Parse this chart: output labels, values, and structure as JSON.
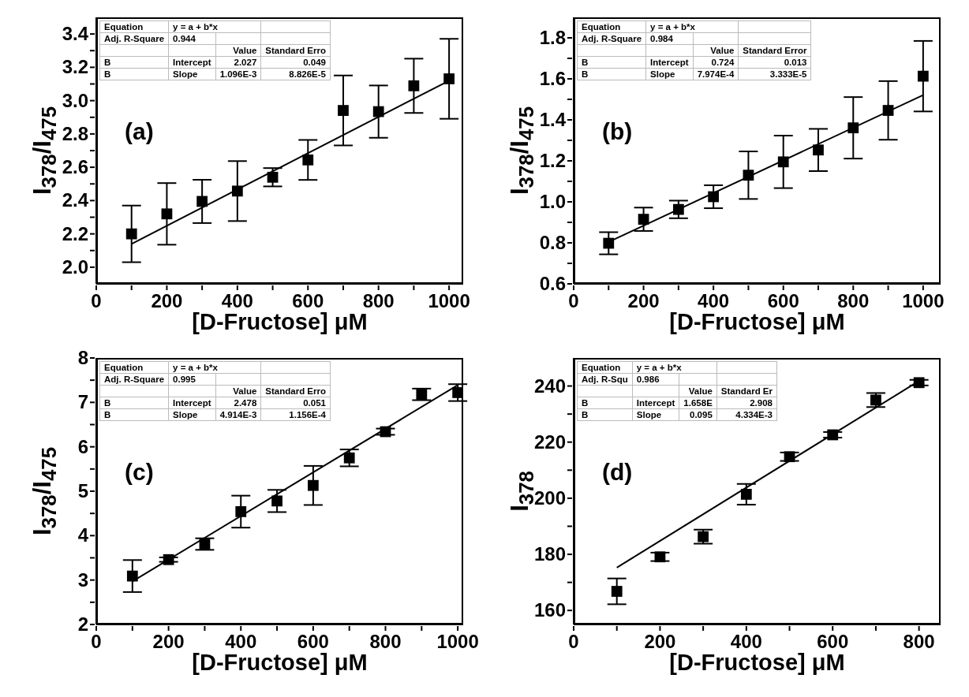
{
  "chart_data": [
    {
      "type": "scatter",
      "xlabel": "[D-Fructose] μM",
      "ylabel": "I$_{378}$/I$_{475}$",
      "annotations": [
        "(a)",
        "Equation",
        "y = a + b*x",
        "Adj. R-Square",
        "0.944",
        "Value",
        "Standard Erro",
        "B",
        "Intercept",
        "2.027",
        "0.049",
        "B",
        "Slope",
        "1.096E-3",
        "8.826E-5"
      ],
      "xlim": [
        0,
        1040
      ],
      "xticks": [
        0,
        {
          "value": 100,
          "label": null
        },
        200,
        {
          "value": 300,
          "label": null
        },
        400,
        {
          "value": 500,
          "label": null
        },
        600,
        {
          "value": 700,
          "label": null
        },
        800,
        {
          "value": 900,
          "label": null
        },
        1000
      ],
      "ylim": [
        1.9,
        3.5
      ],
      "yticks": [
        {
          "value": 2,
          "label": "2.0"
        },
        {
          "value": 2.1,
          "label": null
        },
        2.2,
        {
          "value": 2.3,
          "label": null
        },
        2.4,
        {
          "value": 2.5,
          "label": null
        },
        2.6,
        {
          "value": 2.7,
          "label": null
        },
        2.8,
        {
          "value": 2.9,
          "label": null
        },
        {
          "value": 3,
          "label": "3.0"
        },
        {
          "value": 3.1,
          "label": null
        },
        3.2,
        {
          "value": 3.3,
          "label": null
        },
        3.4
      ],
      "series": [
        {
          "type": "scatter",
          "marker": "square",
          "color": "#000000",
          "x": [
            100,
            200,
            300,
            400,
            500,
            600,
            700,
            800,
            900,
            1000
          ],
          "values": [
            2.2,
            2.32,
            2.395,
            2.457,
            2.54,
            2.644,
            2.941,
            2.934,
            3.089,
            3.131
          ],
          "errors": [
            0.17,
            0.185,
            0.13,
            0.18,
            0.055,
            0.12,
            0.21,
            0.157,
            0.163,
            0.24
          ]
        },
        {
          "type": "line",
          "marker": "none",
          "color": "#000000",
          "x": [
            100,
            1000
          ],
          "values": [
            2.14,
            3.12
          ]
        }
      ]
    },
    {
      "type": "scatter",
      "xlabel": "[D-Fructose] μM",
      "ylabel": "I$_{378}$/I$_{475}$",
      "annotations": [
        "(b)",
        "Equation",
        "y = a + b*x",
        "Adj. R-Square",
        "0.984",
        "Value",
        "Standard Error",
        "B",
        "Intercept",
        "0.724",
        "0.013",
        "B",
        "Slope",
        "7.974E-4",
        "3.333E-5"
      ],
      "xlim": [
        0,
        1050
      ],
      "xticks": [
        0,
        {
          "value": 100,
          "label": null
        },
        200,
        {
          "value": 300,
          "label": null
        },
        400,
        {
          "value": 500,
          "label": null
        },
        600,
        {
          "value": 700,
          "label": null
        },
        800,
        {
          "value": 900,
          "label": null
        },
        1000
      ],
      "ylim": [
        0.6,
        1.9
      ],
      "yticks": [
        0.6,
        {
          "value": 0.7,
          "label": null
        },
        0.8,
        {
          "value": 0.9,
          "label": null
        },
        {
          "value": 1,
          "label": "1.0"
        },
        {
          "value": 1.1,
          "label": null
        },
        1.2,
        {
          "value": 1.3,
          "label": null
        },
        1.4,
        {
          "value": 1.5,
          "label": null
        },
        1.6,
        {
          "value": 1.7,
          "label": null
        },
        1.8
      ],
      "series": [
        {
          "type": "scatter",
          "marker": "square",
          "color": "#000000",
          "x": [
            100,
            200,
            300,
            400,
            500,
            600,
            700,
            800,
            900,
            1000
          ],
          "values": [
            0.798,
            0.915,
            0.963,
            1.025,
            1.13,
            1.195,
            1.253,
            1.361,
            1.446,
            1.613
          ],
          "errors": [
            0.054,
            0.057,
            0.043,
            0.056,
            0.116,
            0.128,
            0.103,
            0.15,
            0.143,
            0.172
          ]
        },
        {
          "type": "line",
          "marker": "none",
          "color": "#000000",
          "x": [
            100,
            1000
          ],
          "values": [
            0.804,
            1.521
          ]
        }
      ]
    },
    {
      "type": "scatter",
      "xlabel": "[D-Fructose] μM",
      "ylabel": "I$_{378}$/I$_{475}$",
      "annotations": [
        "(c)",
        "Equation",
        "y = a + b*x",
        "Adj. R-Square",
        "0.995",
        "Value",
        "Standard Erro",
        "B",
        "Intercept",
        "2.478",
        "0.051",
        "B",
        "Slope",
        "4.914E-3",
        "1.156E-4"
      ],
      "xlim": [
        0,
        1015
      ],
      "xticks": [
        0,
        {
          "value": 100,
          "label": null
        },
        200,
        {
          "value": 300,
          "label": null
        },
        400,
        {
          "value": 500,
          "label": null
        },
        600,
        {
          "value": 700,
          "label": null
        },
        800,
        {
          "value": 900,
          "label": null
        },
        1000
      ],
      "ylim": [
        2,
        8
      ],
      "yticks": [
        2,
        {
          "value": 2.5,
          "label": null
        },
        3,
        {
          "value": 3.5,
          "label": null
        },
        4,
        {
          "value": 4.5,
          "label": null
        },
        5,
        {
          "value": 5.5,
          "label": null
        },
        6,
        {
          "value": 6.5,
          "label": null
        },
        7,
        {
          "value": 7.5,
          "label": null
        },
        8
      ],
      "series": [
        {
          "type": "scatter",
          "marker": "square",
          "color": "#000000",
          "x": [
            100,
            200,
            300,
            400,
            500,
            600,
            700,
            800,
            900,
            1000
          ],
          "values": [
            3.09,
            3.46,
            3.81,
            4.54,
            4.78,
            5.13,
            5.75,
            6.34,
            7.18,
            7.22
          ],
          "errors": [
            0.36,
            0.05,
            0.13,
            0.36,
            0.25,
            0.44,
            0.19,
            0.07,
            0.13,
            0.19
          ]
        },
        {
          "type": "line",
          "marker": "none",
          "color": "#000000",
          "x": [
            100,
            1000
          ],
          "values": [
            2.97,
            7.39
          ]
        }
      ]
    },
    {
      "type": "scatter",
      "xlabel": "[D-Fructose] μM",
      "ylabel": "I$_{378}$",
      "annotations": [
        "(d)",
        "Equation",
        "y = a + b*x",
        "Adj. R-Squ",
        "0.986",
        "Value",
        "Standard Er",
        "B",
        "Intercept",
        "1.658E",
        "2.908",
        "B",
        "Slope",
        "0.095",
        "4.334E-3"
      ],
      "xlim": [
        0,
        850
      ],
      "xticks": [
        0,
        {
          "value": 100,
          "label": null
        },
        200,
        {
          "value": 300,
          "label": null
        },
        400,
        {
          "value": 500,
          "label": null
        },
        600,
        {
          "value": 700,
          "label": null
        },
        800
      ],
      "ylim": [
        155,
        250
      ],
      "yticks": [
        160,
        {
          "value": 170,
          "label": null
        },
        180,
        {
          "value": 190,
          "label": null
        },
        200,
        {
          "value": 210,
          "label": null
        },
        220,
        {
          "value": 230,
          "label": null
        },
        240
      ],
      "series": [
        {
          "type": "scatter",
          "marker": "square",
          "color": "#000000",
          "x": [
            100,
            200,
            300,
            400,
            500,
            600,
            700,
            800
          ],
          "values": [
            166.8,
            179.1,
            186.3,
            201.4,
            214.8,
            222.6,
            235,
            241.2
          ],
          "errors": [
            4.6,
            1.5,
            2.5,
            3.7,
            1.5,
            1,
            2.5,
            1
          ]
        },
        {
          "type": "line",
          "marker": "none",
          "color": "#000000",
          "x": [
            100,
            800
          ],
          "values": [
            175.3,
            241.8
          ]
        }
      ]
    }
  ]
}
